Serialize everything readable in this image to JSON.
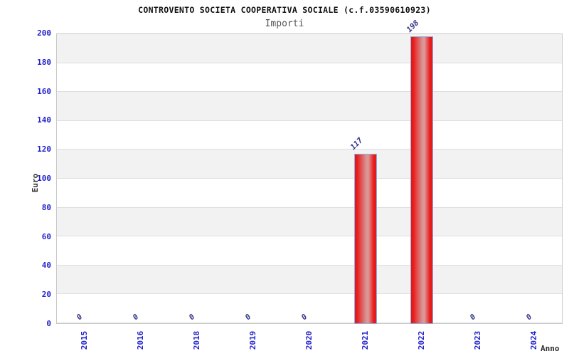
{
  "chart_data": {
    "type": "bar",
    "title": "CONTROVENTO SOCIETA COOPERATIVA SOCIALE (c.f.03590610923)",
    "subtitle": "Importi",
    "xlabel": "Anno",
    "ylabel": "Euro",
    "categories": [
      "2015",
      "2016",
      "2018",
      "2019",
      "2020",
      "2021",
      "2022",
      "2023",
      "2024"
    ],
    "values": [
      0,
      0,
      0,
      0,
      0,
      117,
      198,
      0,
      0
    ],
    "value_labels": [
      "0",
      "0",
      "0",
      "0",
      "0",
      "117",
      "198",
      "0",
      "0"
    ],
    "ylim": [
      0,
      200
    ],
    "ytick_step": 20,
    "grid": "alternating-horizontal-bands",
    "legend": "none",
    "colors": {
      "bar_fill": "#ea1b1b",
      "bar_highlight": "#d89191",
      "bar_border": "#85b3e8",
      "tick_label": "#2222cc",
      "value_label": "#333388",
      "band_gray": "#f2f2f2",
      "band_white": "#ffffff",
      "plot_border": "#c8c8c8",
      "title": "#111111",
      "subtitle": "#555555",
      "axis_label": "#333333"
    }
  }
}
